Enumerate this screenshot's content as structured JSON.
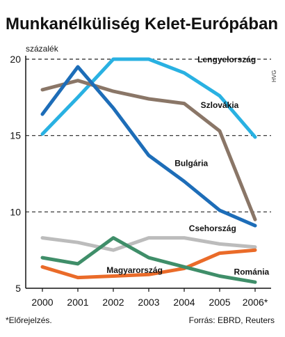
{
  "chart_data": {
    "type": "line",
    "title": "Munkanélküliség Kelet-Európában",
    "ylabel": "százalék",
    "x": [
      "2000",
      "2001",
      "2002",
      "2003",
      "2004",
      "2005",
      "2006*"
    ],
    "ylim": [
      5,
      20
    ],
    "yticks": [
      5,
      10,
      15,
      20
    ],
    "grid": "dashed horizontal",
    "series": [
      {
        "name": "Lengyelország",
        "color": "#29b1e2",
        "values": [
          15.1,
          17.5,
          20.0,
          20.0,
          19.1,
          17.6,
          14.9
        ]
      },
      {
        "name": "Szlovákia",
        "color": "#8a7667",
        "values": [
          18.0,
          18.6,
          17.9,
          17.4,
          17.1,
          15.3,
          9.5
        ]
      },
      {
        "name": "Bulgária",
        "color": "#1d6db8",
        "values": [
          16.4,
          19.5,
          16.8,
          13.7,
          12.0,
          10.1,
          9.1
        ]
      },
      {
        "name": "Csehország",
        "color": "#bcbcbc",
        "values": [
          8.3,
          8.0,
          7.5,
          8.3,
          8.3,
          7.9,
          7.7
        ]
      },
      {
        "name": "Magyarország",
        "color": "#ea6b29",
        "values": [
          6.4,
          5.7,
          5.8,
          5.9,
          6.3,
          7.3,
          7.5
        ]
      },
      {
        "name": "Románia",
        "color": "#3f8e69",
        "values": [
          7.0,
          6.6,
          8.3,
          7.0,
          6.4,
          5.8,
          5.4
        ]
      }
    ]
  },
  "footnote": "*Előrejelzés.",
  "source": "Forrás: EBRD, Reuters",
  "credit": "HVG"
}
